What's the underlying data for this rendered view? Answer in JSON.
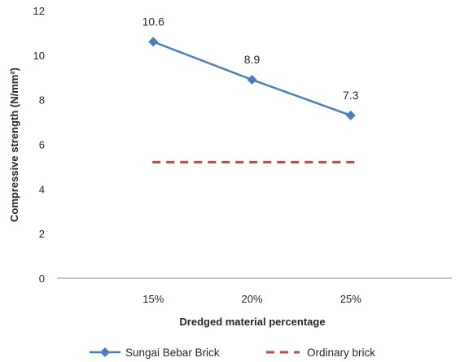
{
  "chart_data": {
    "type": "line",
    "categories": [
      "15%",
      "20%",
      "25%"
    ],
    "series": [
      {
        "name": "Sungai Bebar Brick",
        "values": [
          10.6,
          8.9,
          7.3
        ],
        "color": "#4a7ebb",
        "style": "solid",
        "marker": "diamond",
        "data_labels": [
          "10.6",
          "8.9",
          "7.3"
        ]
      },
      {
        "name": "Ordinary brick",
        "values": [
          5.2,
          5.2,
          5.2
        ],
        "color": "#be4b48",
        "style": "dashed",
        "marker": "none"
      }
    ],
    "xlabel": "Dredged material percentage",
    "ylabel": "Compressive strength (N/mm²)",
    "ylim": [
      0,
      12
    ],
    "yticks": [
      "0",
      "2",
      "4",
      "6",
      "8",
      "10",
      "12"
    ],
    "grid": false,
    "legend_position": "bottom"
  }
}
